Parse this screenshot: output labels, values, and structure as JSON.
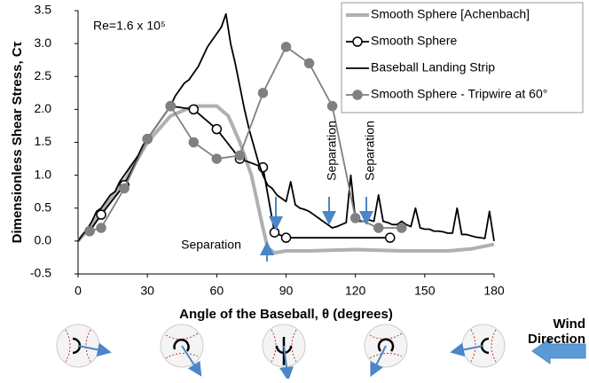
{
  "chart_data": {
    "type": "line",
    "xlabel": "Angle of the Baseball, θ (degrees)",
    "ylabel": "Dimensionless Shear Stress, Cτ",
    "xlim": [
      0,
      180
    ],
    "ylim": [
      -0.5,
      3.5
    ],
    "xticks": [
      0,
      30,
      60,
      90,
      120,
      150,
      180
    ],
    "yticks": [
      -0.5,
      {
        "value": 0,
        "label": "0.0"
      },
      0.5,
      {
        "value": 1,
        "label": "1.0"
      },
      1.5,
      {
        "value": 2,
        "label": "2.0"
      },
      2.5,
      {
        "value": 3,
        "label": "3.0"
      },
      3.5
    ],
    "grid": false,
    "legend_position": "upper right",
    "annotations": [
      "Re=1.6 x 10⁵",
      "Separation",
      "Separation",
      "Separation"
    ],
    "wind_label": [
      "Wind",
      "Direction"
    ],
    "series": [
      {
        "name": "Smooth Sphere [Achenbach]",
        "color": "#b0b0b0",
        "marker": "none",
        "x": [
          0,
          5,
          10,
          20,
          30,
          40,
          50,
          60,
          65,
          70,
          75,
          80,
          82,
          85,
          90,
          100,
          120,
          140,
          160,
          170,
          180
        ],
        "values": [
          0,
          0.2,
          0.45,
          0.9,
          1.5,
          1.9,
          2.05,
          2.05,
          1.9,
          1.5,
          1.0,
          0.2,
          -0.1,
          -0.18,
          -0.15,
          -0.15,
          -0.13,
          -0.15,
          -0.15,
          -0.12,
          -0.05
        ]
      },
      {
        "name": "Smooth Sphere",
        "color": "#000000",
        "marker": "open",
        "x": [
          5,
          10,
          20,
          30,
          40,
          50,
          60,
          70,
          80,
          85,
          90,
          135
        ],
        "values": [
          0.15,
          0.4,
          0.85,
          1.55,
          2.05,
          2.0,
          1.7,
          1.25,
          1.12,
          0.13,
          0.05,
          0.05
        ]
      },
      {
        "name": "Baseball Landing Strip",
        "color": "#000000",
        "marker": "none",
        "x": [
          0,
          2,
          4,
          6,
          8,
          10,
          12,
          14,
          16,
          18,
          20,
          22,
          24,
          26,
          28,
          30,
          32,
          34,
          36,
          38,
          40,
          42,
          44,
          46,
          48,
          50,
          52,
          54,
          56,
          58,
          60,
          62,
          64,
          66,
          68,
          70,
          72,
          74,
          76,
          78,
          80,
          82,
          84,
          86,
          88,
          90,
          92,
          94,
          96,
          98,
          100,
          102,
          104,
          106,
          108,
          110,
          112,
          114,
          116,
          118,
          120,
          122,
          124,
          126,
          128,
          130,
          132,
          134,
          136,
          138,
          140,
          142,
          144,
          146,
          148,
          150,
          152,
          154,
          156,
          158,
          160,
          162,
          164,
          166,
          168,
          170,
          172,
          174,
          176,
          178,
          180
        ],
        "values": [
          0.0,
          0.1,
          0.18,
          0.3,
          0.45,
          0.5,
          0.6,
          0.7,
          0.75,
          0.9,
          1.0,
          1.1,
          1.2,
          1.3,
          1.45,
          1.55,
          1.65,
          1.75,
          1.85,
          1.95,
          2.05,
          2.2,
          2.3,
          2.4,
          2.45,
          2.55,
          2.65,
          2.8,
          2.95,
          3.05,
          3.15,
          3.25,
          3.45,
          3.0,
          2.7,
          2.35,
          2.0,
          1.7,
          1.45,
          1.2,
          1.0,
          0.85,
          0.8,
          0.7,
          0.65,
          0.6,
          0.9,
          0.55,
          0.5,
          0.48,
          0.45,
          0.4,
          0.35,
          0.3,
          0.25,
          0.2,
          0.22,
          0.25,
          0.28,
          1.0,
          0.32,
          0.3,
          0.3,
          0.32,
          0.3,
          0.7,
          0.3,
          0.28,
          0.25,
          0.25,
          0.3,
          0.25,
          0.22,
          0.5,
          0.2,
          0.18,
          0.18,
          0.15,
          0.15,
          0.14,
          0.12,
          0.12,
          0.5,
          0.1,
          0.1,
          0.08,
          0.06,
          0.05,
          0.04,
          0.45,
          0.0
        ]
      },
      {
        "name": "Smooth Sphere - Tripwire at 60°",
        "color": "#808080",
        "marker": "filled",
        "x": [
          5,
          10,
          20,
          30,
          40,
          50,
          60,
          70,
          80,
          90,
          100,
          110,
          120,
          130,
          140
        ],
        "values": [
          0.15,
          0.2,
          0.8,
          1.55,
          2.05,
          1.5,
          1.25,
          1.3,
          2.25,
          2.95,
          2.7,
          2.05,
          0.35,
          0.2,
          0.2
        ]
      }
    ]
  }
}
